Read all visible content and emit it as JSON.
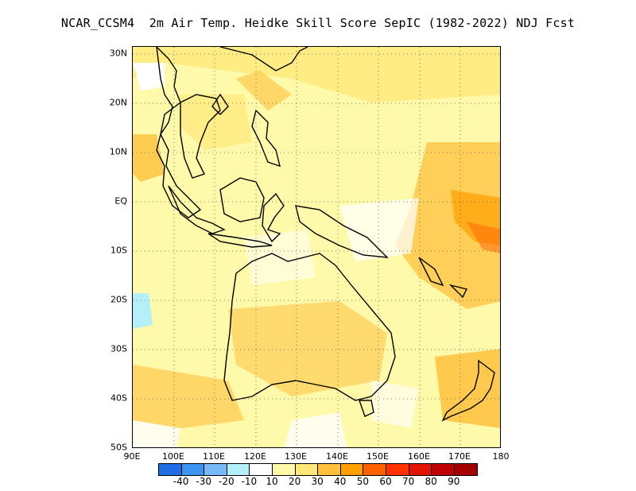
{
  "title": "NCAR_CCSM4  2m Air Temp. Heidke Skill Score SepIC (1982-2022) NDJ Fcst",
  "map": {
    "lat_labels": [
      "30N",
      "20N",
      "10N",
      "EQ",
      "10S",
      "20S",
      "30S",
      "40S",
      "50S"
    ],
    "lon_labels": [
      "90E",
      "100E",
      "110E",
      "120E",
      "130E",
      "140E",
      "150E",
      "160E",
      "170E",
      "180"
    ],
    "lon_range": [
      90,
      180
    ],
    "lat_range": [
      -50,
      32
    ],
    "grid": "dotted"
  },
  "colorbar": {
    "colors": [
      "#1e6ee6",
      "#3c96f0",
      "#78b9fa",
      "#b4f0fa",
      "#ffffff",
      "#fffaaa",
      "#ffe878",
      "#ffc03c",
      "#ffa000",
      "#ff6000",
      "#ff3200",
      "#e11400",
      "#c00000",
      "#a50000"
    ],
    "tick_labels": [
      "-40",
      "-30",
      "-20",
      "-10",
      "10",
      "20",
      "30",
      "40",
      "50",
      "60",
      "70",
      "80",
      "90"
    ]
  }
}
